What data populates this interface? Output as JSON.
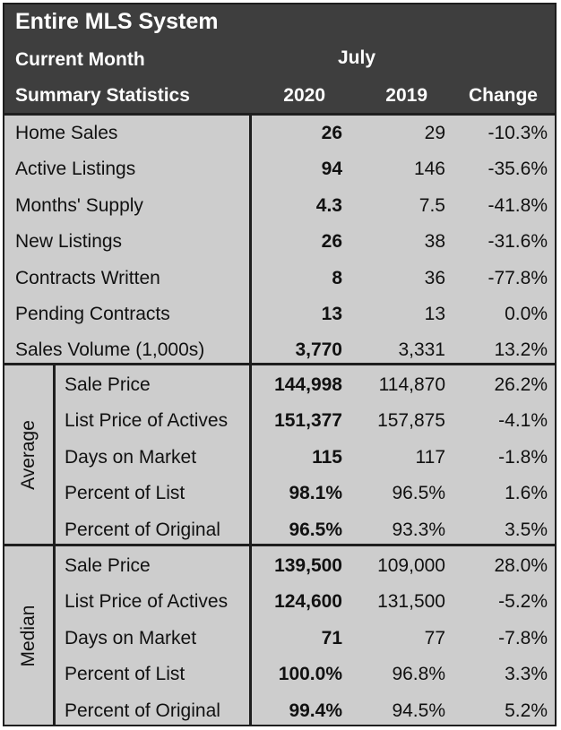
{
  "header": {
    "title": "Entire MLS System",
    "current_month_label": "Current Month",
    "month": "July",
    "summary_label": "Summary Statistics",
    "col_2020": "2020",
    "col_2019": "2019",
    "col_change": "Change"
  },
  "summary": [
    {
      "label": "Home Sales",
      "v2020": "26",
      "v2019": "29",
      "change": "-10.3%"
    },
    {
      "label": "Active Listings",
      "v2020": "94",
      "v2019": "146",
      "change": "-35.6%"
    },
    {
      "label": "Months' Supply",
      "v2020": "4.3",
      "v2019": "7.5",
      "change": "-41.8%"
    },
    {
      "label": "New Listings",
      "v2020": "26",
      "v2019": "38",
      "change": "-31.6%"
    },
    {
      "label": "Contracts Written",
      "v2020": "8",
      "v2019": "36",
      "change": "-77.8%"
    },
    {
      "label": "Pending Contracts",
      "v2020": "13",
      "v2019": "13",
      "change": "0.0%"
    },
    {
      "label": "Sales Volume (1,000s)",
      "v2020": "3,770",
      "v2019": "3,331",
      "change": "13.2%"
    }
  ],
  "average": {
    "label": "Average",
    "rows": [
      {
        "label": "Sale Price",
        "v2020": "144,998",
        "v2019": "114,870",
        "change": "26.2%"
      },
      {
        "label": "List Price of Actives",
        "v2020": "151,377",
        "v2019": "157,875",
        "change": "-4.1%"
      },
      {
        "label": "Days on Market",
        "v2020": "115",
        "v2019": "117",
        "change": "-1.8%"
      },
      {
        "label": "Percent of List",
        "v2020": "98.1%",
        "v2019": "96.5%",
        "change": "1.6%"
      },
      {
        "label": "Percent of Original",
        "v2020": "96.5%",
        "v2019": "93.3%",
        "change": "3.5%"
      }
    ]
  },
  "median": {
    "label": "Median",
    "rows": [
      {
        "label": "Sale Price",
        "v2020": "139,500",
        "v2019": "109,000",
        "change": "28.0%"
      },
      {
        "label": "List Price of Actives",
        "v2020": "124,600",
        "v2019": "131,500",
        "change": "-5.2%"
      },
      {
        "label": "Days on Market",
        "v2020": "71",
        "v2019": "77",
        "change": "-7.8%"
      },
      {
        "label": "Percent of List",
        "v2020": "100.0%",
        "v2019": "96.8%",
        "change": "3.3%"
      },
      {
        "label": "Percent of Original",
        "v2020": "99.4%",
        "v2019": "94.5%",
        "change": "5.2%"
      }
    ]
  }
}
